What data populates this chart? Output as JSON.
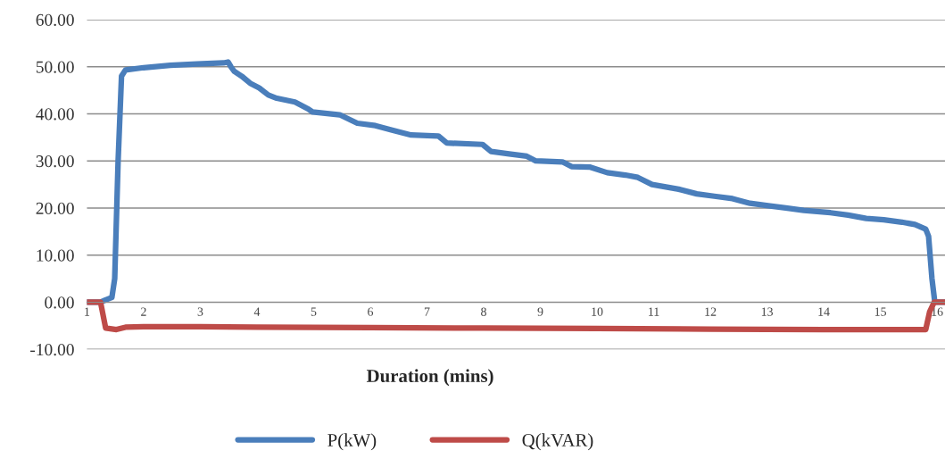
{
  "chart_data": {
    "type": "line",
    "xlabel": "Duration (mins)",
    "xlim": [
      1,
      16.14
    ],
    "xticks": [
      1,
      2,
      3,
      4,
      5,
      6,
      7,
      8,
      9,
      10,
      11,
      12,
      13,
      14,
      15,
      16
    ],
    "ylim": [
      -10,
      60
    ],
    "yticks": [
      {
        "value": -10,
        "label": "-10.00"
      },
      {
        "value": 0,
        "label": "0.00"
      },
      {
        "value": 10,
        "label": "10.00"
      },
      {
        "value": 20,
        "label": "20.00"
      },
      {
        "value": 30,
        "label": "30.00"
      },
      {
        "value": 40,
        "label": "40.00"
      },
      {
        "value": 50,
        "label": "50.00"
      },
      {
        "value": 60,
        "label": "60.00"
      }
    ],
    "grid": "y",
    "legend": "bottom",
    "marker": "none",
    "line_style": "solid",
    "series": [
      {
        "name": "P(kW)",
        "color": "#4a7ebb",
        "x": [
          1,
          1.24,
          1.33,
          1.44,
          1.49,
          1.55,
          1.61,
          1.68,
          2,
          2.47,
          2.94,
          3.41,
          3.49,
          3.54,
          3.6,
          3.73,
          3.88,
          4.04,
          4.2,
          4.35,
          4.67,
          4.91,
          4.98,
          5.46,
          5.77,
          6.09,
          6.4,
          6.72,
          7.2,
          7.35,
          7.98,
          8.13,
          8.45,
          8.76,
          8.92,
          9.39,
          9.55,
          9.87,
          10.18,
          10.5,
          10.72,
          10.97,
          11.44,
          11.76,
          12.07,
          12.39,
          12.7,
          13.02,
          13.33,
          13.65,
          14.12,
          14.43,
          14.75,
          15.06,
          15.38,
          15.61,
          15.8,
          15.85,
          15.91,
          15.96,
          16.14
        ],
        "values": [
          0,
          0,
          0.5,
          1,
          5,
          30,
          48,
          49.3,
          49.8,
          50.3,
          50.6,
          50.8,
          51,
          50,
          49,
          48,
          46.5,
          45.5,
          44,
          43.3,
          42.5,
          41,
          40.4,
          39.8,
          38,
          37.5,
          36.5,
          35.5,
          35.3,
          33.8,
          33.5,
          32,
          31.5,
          31,
          30,
          29.8,
          28.8,
          28.7,
          27.5,
          27,
          26.5,
          25,
          24,
          23,
          22.5,
          22,
          21,
          20.5,
          20,
          19.5,
          19,
          18.5,
          17.8,
          17.5,
          17,
          16.5,
          15.5,
          14,
          5,
          0,
          0
        ]
      },
      {
        "name": "Q(kVAR)",
        "color": "#be4b48",
        "x": [
          1,
          1.24,
          1.33,
          1.52,
          1.68,
          2,
          3,
          4,
          6,
          8,
          10,
          12,
          14,
          15.64,
          15.8,
          15.87,
          15.95,
          16.14
        ],
        "values": [
          0,
          0,
          -5.5,
          -5.8,
          -5.3,
          -5.2,
          -5.2,
          -5.3,
          -5.4,
          -5.5,
          -5.6,
          -5.7,
          -5.8,
          -5.8,
          -5.8,
          -2,
          0,
          0
        ]
      }
    ]
  }
}
